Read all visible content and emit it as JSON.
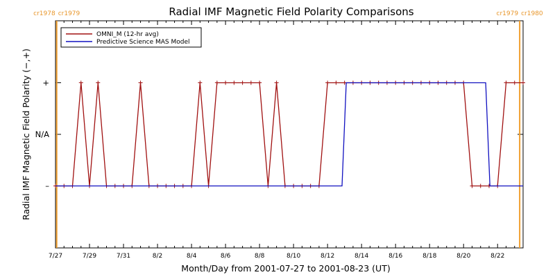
{
  "chart_data": {
    "type": "line",
    "title": "Radial IMF Magnetic Field Polarity Comparisons",
    "xlabel": "Month/Day from 2001-07-27 to 2001-08-23 (UT)",
    "ylabel": "Radial IMF Magnetic Field Polarity (−,+)",
    "xlim": [
      0,
      27.5
    ],
    "ylim": [
      -2.2,
      2.2
    ],
    "x_ticks": [
      {
        "value": 0,
        "label": "7/27"
      },
      {
        "value": 2,
        "label": "7/29"
      },
      {
        "value": 4,
        "label": "7/31"
      },
      {
        "value": 6,
        "label": "8/2"
      },
      {
        "value": 8,
        "label": "8/4"
      },
      {
        "value": 10,
        "label": "8/6"
      },
      {
        "value": 12,
        "label": "8/8"
      },
      {
        "value": 14,
        "label": "8/10"
      },
      {
        "value": 16,
        "label": "8/12"
      },
      {
        "value": 18,
        "label": "8/14"
      },
      {
        "value": 20,
        "label": "8/16"
      },
      {
        "value": 22,
        "label": "8/18"
      },
      {
        "value": 24,
        "label": "8/20"
      },
      {
        "value": 26,
        "label": "8/22"
      }
    ],
    "y_ticks": [
      {
        "value": 1,
        "label": "+"
      },
      {
        "value": 0,
        "label": "N/A"
      },
      {
        "value": -1,
        "label": "–"
      }
    ],
    "carrington_markers": [
      {
        "x": 0.07,
        "left_label": "cr1978",
        "right_label": "cr1979"
      },
      {
        "x": 27.3,
        "left_label": "cr1979",
        "right_label": "cr1980"
      }
    ],
    "legend": {
      "position": "top-left",
      "entries": [
        {
          "name": "OMNI_M (12-hr avg)",
          "color": "#a01010"
        },
        {
          "name": "Predictive Science MAS Model",
          "color": "#1010c0"
        }
      ]
    },
    "series": [
      {
        "name": "OMNI_M (12-hr avg)",
        "color": "#a01010",
        "markers": true,
        "x": [
          0,
          0.5,
          1,
          1.5,
          2,
          2.5,
          3,
          3.5,
          4,
          4.5,
          5,
          5.5,
          6,
          6.5,
          7,
          7.5,
          8,
          8.5,
          9,
          9.5,
          10,
          10.5,
          11,
          11.5,
          12,
          12.5,
          13,
          13.5,
          14,
          14.5,
          15,
          15.5,
          16,
          16.5,
          17,
          17.5,
          18,
          18.5,
          19,
          19.5,
          20,
          20.5,
          21,
          21.5,
          22,
          22.5,
          23,
          23.5,
          24,
          24.5,
          25,
          25.5,
          26,
          26.5,
          27,
          27.5
        ],
        "y": [
          -1,
          -1,
          -1,
          1,
          -1,
          1,
          -1,
          -1,
          -1,
          -1,
          1,
          -1,
          -1,
          -1,
          -1,
          -1,
          -1,
          1,
          -1,
          1,
          1,
          1,
          1,
          1,
          1,
          -1,
          1,
          -1,
          -1,
          -1,
          -1,
          -1,
          1,
          1,
          1,
          1,
          1,
          1,
          1,
          1,
          1,
          1,
          1,
          1,
          1,
          1,
          1,
          1,
          1,
          -1,
          -1,
          -1,
          -1,
          1,
          1,
          1
        ]
      },
      {
        "name": "Predictive Science MAS Model",
        "color": "#1010c0",
        "markers": false,
        "x": [
          0,
          16.85,
          17.1,
          25.3,
          25.55,
          27.5
        ],
        "y": [
          -1,
          -1,
          1,
          1,
          -1,
          -1
        ]
      }
    ]
  }
}
